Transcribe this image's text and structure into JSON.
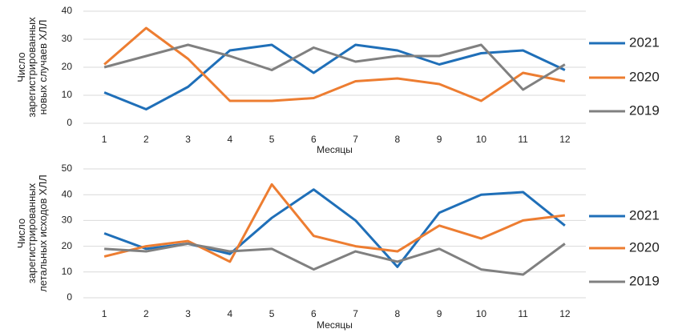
{
  "chart_data": [
    {
      "type": "line",
      "y_label": "Число зарегистрированных новых случаев ХЛЛ",
      "x_label": "Месяцы",
      "categories": [
        "1",
        "2",
        "3",
        "4",
        "5",
        "6",
        "7",
        "8",
        "9",
        "10",
        "11",
        "12"
      ],
      "ylim": [
        0,
        40
      ],
      "yticks": [
        0,
        10,
        20,
        30,
        40
      ],
      "grid": true,
      "series": [
        {
          "name": "2021",
          "color": "#1f6fb8",
          "values": [
            11,
            5,
            13,
            26,
            28,
            18,
            28,
            26,
            21,
            25,
            26,
            19
          ]
        },
        {
          "name": "2020",
          "color": "#ed7d31",
          "values": [
            21,
            34,
            23,
            8,
            8,
            9,
            15,
            16,
            14,
            8,
            18,
            15
          ]
        },
        {
          "name": "2019",
          "color": "#808080",
          "values": [
            20,
            24,
            28,
            24,
            19,
            27,
            22,
            24,
            24,
            28,
            12,
            21
          ]
        }
      ]
    },
    {
      "type": "line",
      "y_label": "Число зарегистрированных летальных исходов ХЛЛ",
      "x_label": "Месяцы",
      "categories": [
        "1",
        "2",
        "3",
        "4",
        "5",
        "6",
        "7",
        "8",
        "9",
        "10",
        "11",
        "12"
      ],
      "ylim": [
        0,
        50
      ],
      "yticks": [
        0,
        10,
        20,
        30,
        40,
        50
      ],
      "grid": true,
      "series": [
        {
          "name": "2021",
          "color": "#1f6fb8",
          "values": [
            25,
            19,
            21,
            17,
            31,
            42,
            30,
            12,
            33,
            40,
            41,
            28
          ]
        },
        {
          "name": "2020",
          "color": "#ed7d31",
          "values": [
            16,
            20,
            22,
            14,
            44,
            24,
            20,
            18,
            28,
            23,
            30,
            32
          ]
        },
        {
          "name": "2019",
          "color": "#808080",
          "values": [
            19,
            18,
            21,
            18,
            19,
            11,
            18,
            14,
            19,
            11,
            9,
            21
          ]
        }
      ]
    }
  ]
}
